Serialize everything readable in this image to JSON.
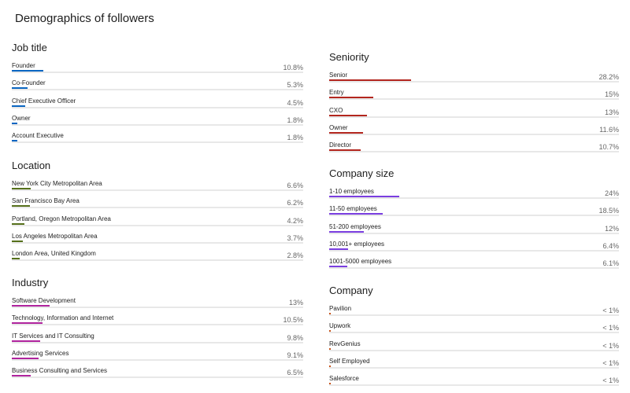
{
  "title": "Demographics of followers",
  "sections": [
    {
      "name": "Job title",
      "color": "#0a66c2",
      "labels": [
        "Founder",
        "Co-Founder",
        "Chief Executive Officer",
        "Owner",
        "Account Executive"
      ],
      "values": [
        10.8,
        5.3,
        4.5,
        1.8,
        1.8
      ],
      "value_labels": [
        "10.8%",
        "5.3%",
        "4.5%",
        "1.8%",
        "1.8%"
      ]
    },
    {
      "name": "Location",
      "color": "#56701b",
      "labels": [
        "New York City Metropolitan Area",
        "San Francisco Bay Area",
        "Portland, Oregon Metropolitan Area",
        "Los Angeles Metropolitan Area",
        "London Area, United Kingdom"
      ],
      "values": [
        6.6,
        6.2,
        4.2,
        3.7,
        2.8
      ],
      "value_labels": [
        "6.6%",
        "6.2%",
        "4.2%",
        "3.7%",
        "2.8%"
      ]
    },
    {
      "name": "Industry",
      "color": "#b0249e",
      "labels": [
        "Software Development",
        "Technology, Information and Internet",
        "IT Services and IT Consulting",
        "Advertising Services",
        "Business Consulting and Services"
      ],
      "values": [
        13,
        10.5,
        9.8,
        9.1,
        6.5
      ],
      "value_labels": [
        "13%",
        "10.5%",
        "9.8%",
        "9.1%",
        "6.5%"
      ]
    },
    {
      "name": "Seniority",
      "color": "#b3261e",
      "labels": [
        "Senior",
        "Entry",
        "CXO",
        "Owner",
        "Director"
      ],
      "values": [
        28.2,
        15,
        13,
        11.6,
        10.7
      ],
      "value_labels": [
        "28.2%",
        "15%",
        "13%",
        "11.6%",
        "10.7%"
      ]
    },
    {
      "name": "Company size",
      "color": "#7a3ee0",
      "labels": [
        "1-10 employees",
        "11-50 employees",
        "51-200 employees",
        "10,001+ employees",
        "1001-5000 employees"
      ],
      "values": [
        24,
        18.5,
        12,
        6.4,
        6.1
      ],
      "value_labels": [
        "24%",
        "18.5%",
        "12%",
        "6.4%",
        "6.1%"
      ]
    },
    {
      "name": "Company",
      "color": "#c7541a",
      "labels": [
        "Pavilion",
        "Upwork",
        "RevGenius",
        "Self Employed",
        "Salesforce"
      ],
      "values": [
        0.5,
        0.5,
        0.5,
        0.5,
        0.5
      ],
      "value_labels": [
        "< 1%",
        "< 1%",
        "< 1%",
        "< 1%",
        "< 1%"
      ]
    }
  ]
}
